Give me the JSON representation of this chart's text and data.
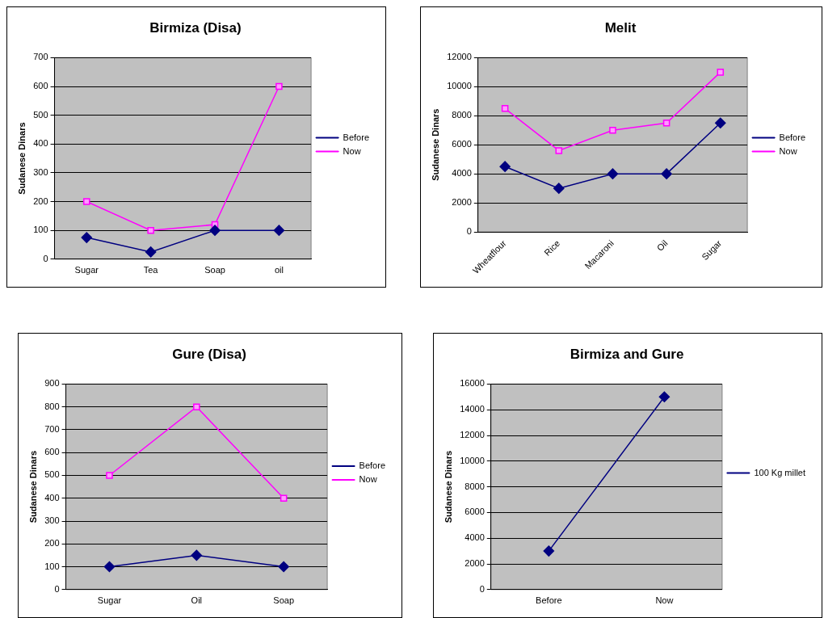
{
  "chart_data": [
    {
      "type": "line",
      "title": "Birmiza (Disa)",
      "ylabel": "Sudanese Dinars",
      "categories": [
        "Sugar",
        "Tea",
        "Soap",
        "oil"
      ],
      "series": [
        {
          "name": "Before",
          "color": "#000080",
          "marker": "diamond",
          "values": [
            75,
            25,
            100,
            100
          ]
        },
        {
          "name": "Now",
          "color": "#ff00ff",
          "marker": "square",
          "values": [
            200,
            100,
            120,
            600
          ]
        }
      ],
      "ylim": [
        0,
        700
      ],
      "yticks": [
        0,
        100,
        200,
        300,
        400,
        500,
        600,
        700
      ],
      "grid": "y",
      "legend": "right"
    },
    {
      "type": "line",
      "title": "Melit",
      "ylabel": "Sudanese Dinars",
      "categories": [
        "Wheatflour",
        "Rice",
        "Macaroni",
        "Oil",
        "Sugar"
      ],
      "series": [
        {
          "name": "Before",
          "color": "#000080",
          "marker": "diamond",
          "values": [
            4500,
            3000,
            4000,
            4000,
            7500
          ]
        },
        {
          "name": "Now",
          "color": "#ff00ff",
          "marker": "square",
          "values": [
            8500,
            5600,
            7000,
            7500,
            11000
          ]
        }
      ],
      "ylim": [
        0,
        12000
      ],
      "yticks": [
        0,
        2000,
        4000,
        6000,
        8000,
        10000,
        12000
      ],
      "grid": "y",
      "legend": "right"
    },
    {
      "type": "line",
      "title": "Gure (Disa)",
      "ylabel": "Sudanese Dinars",
      "categories": [
        "Sugar",
        "Oil",
        "Soap"
      ],
      "series": [
        {
          "name": "Before",
          "color": "#000080",
          "marker": "diamond",
          "values": [
            100,
            150,
            100
          ]
        },
        {
          "name": "Now",
          "color": "#ff00ff",
          "marker": "square",
          "values": [
            500,
            800,
            400
          ]
        }
      ],
      "ylim": [
        0,
        900
      ],
      "yticks": [
        0,
        100,
        200,
        300,
        400,
        500,
        600,
        700,
        800,
        900
      ],
      "grid": "y",
      "legend": "right"
    },
    {
      "type": "line",
      "title": "Birmiza and Gure",
      "ylabel": "Sudanese Dinars",
      "categories": [
        "Before",
        "Now"
      ],
      "series": [
        {
          "name": "100 Kg millet",
          "color": "#000080",
          "marker": "diamond",
          "values": [
            3000,
            15000
          ]
        }
      ],
      "ylim": [
        0,
        16000
      ],
      "yticks": [
        0,
        2000,
        4000,
        6000,
        8000,
        10000,
        12000,
        14000,
        16000
      ],
      "grid": "y",
      "legend": "right"
    }
  ]
}
